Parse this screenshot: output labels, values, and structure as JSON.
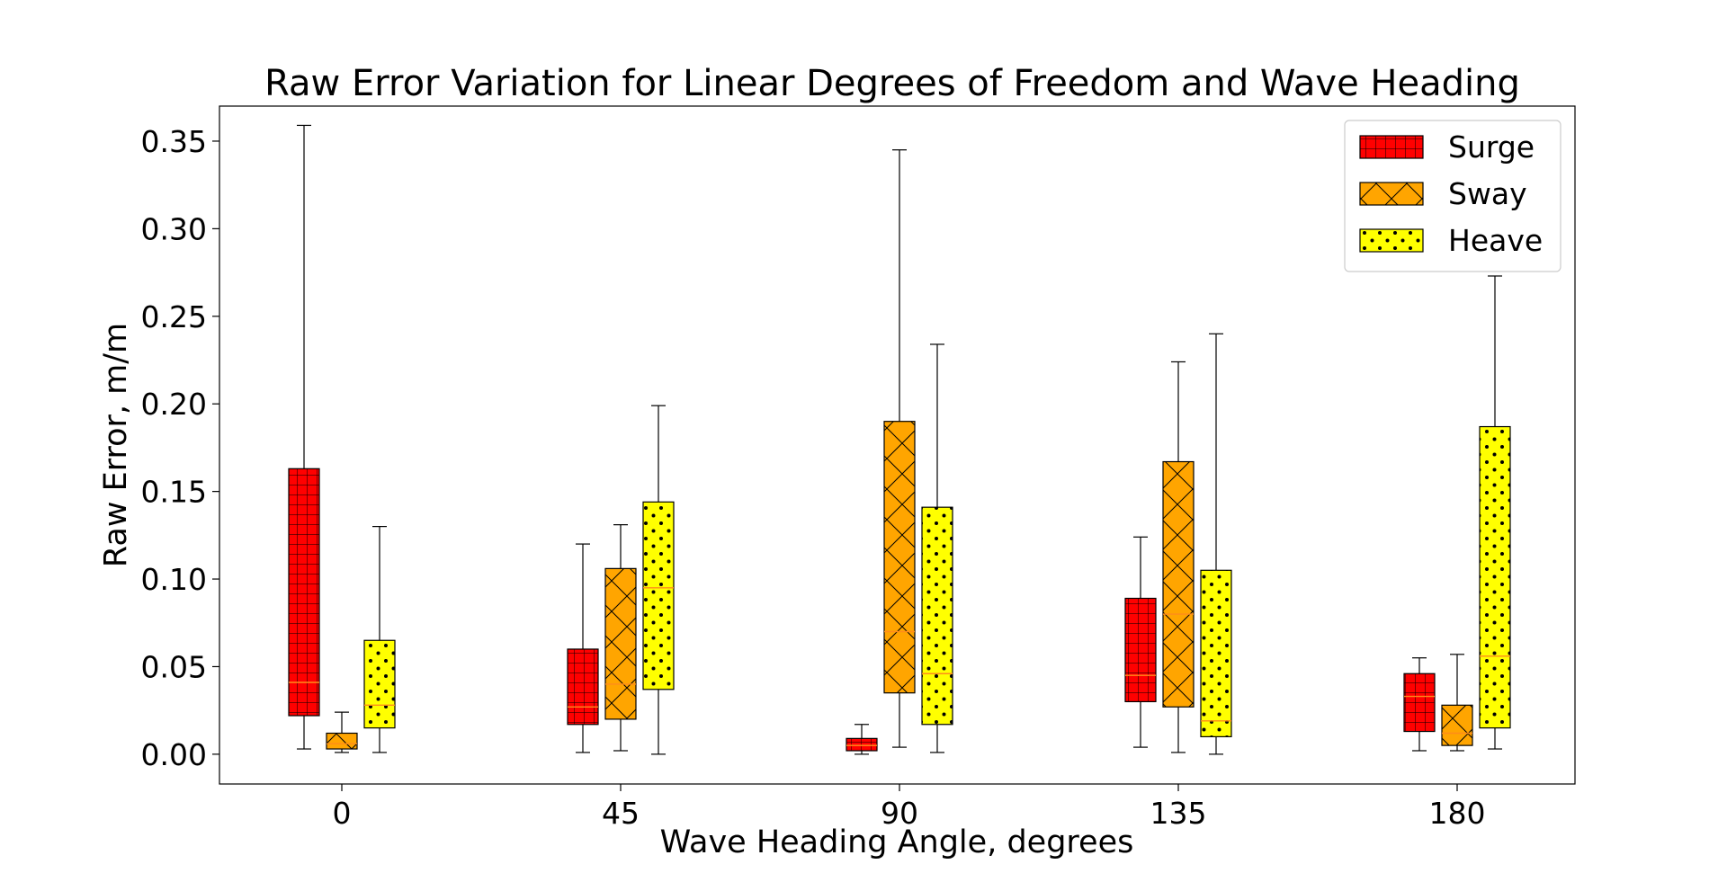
{
  "chart_data": {
    "type": "box",
    "title": "Raw Error Variation for Linear Degrees of Freedom and Wave Heading",
    "xlabel": "Wave Heading Angle, degrees",
    "ylabel": "Raw Error, m/m",
    "categories": [
      "0",
      "45",
      "90",
      "135",
      "180"
    ],
    "ylim": [
      -0.017,
      0.37
    ],
    "yticks": [
      0.0,
      0.05,
      0.1,
      0.15,
      0.2,
      0.25,
      0.3,
      0.35
    ],
    "ytick_labels": [
      "0.00",
      "0.05",
      "0.10",
      "0.15",
      "0.20",
      "0.25",
      "0.30",
      "0.35"
    ],
    "legend_position": "top-right",
    "grid": false,
    "series": [
      {
        "name": "Surge",
        "color": "#ff0000",
        "hatch": "grid",
        "boxes": [
          {
            "min": 0.003,
            "q1": 0.022,
            "median": 0.041,
            "q3": 0.163,
            "max": 0.359
          },
          {
            "min": 0.001,
            "q1": 0.017,
            "median": 0.027,
            "q3": 0.06,
            "max": 0.12
          },
          {
            "min": 0.0,
            "q1": 0.002,
            "median": 0.005,
            "q3": 0.009,
            "max": 0.017
          },
          {
            "min": 0.004,
            "q1": 0.03,
            "median": 0.045,
            "q3": 0.089,
            "max": 0.124
          },
          {
            "min": 0.002,
            "q1": 0.013,
            "median": 0.033,
            "q3": 0.046,
            "max": 0.055
          }
        ]
      },
      {
        "name": "Sway",
        "color": "#ffa500",
        "hatch": "cross",
        "boxes": [
          {
            "min": 0.001,
            "q1": 0.003,
            "median": 0.006,
            "q3": 0.012,
            "max": 0.024
          },
          {
            "min": 0.002,
            "q1": 0.02,
            "median": 0.04,
            "q3": 0.106,
            "max": 0.131
          },
          {
            "min": 0.004,
            "q1": 0.035,
            "median": 0.07,
            "q3": 0.19,
            "max": 0.345
          },
          {
            "min": 0.001,
            "q1": 0.027,
            "median": 0.08,
            "q3": 0.167,
            "max": 0.224
          },
          {
            "min": 0.002,
            "q1": 0.005,
            "median": 0.012,
            "q3": 0.028,
            "max": 0.057
          }
        ]
      },
      {
        "name": "Heave",
        "color": "#ffff00",
        "hatch": "dots",
        "boxes": [
          {
            "min": 0.001,
            "q1": 0.015,
            "median": 0.028,
            "q3": 0.065,
            "max": 0.13
          },
          {
            "min": 0.0,
            "q1": 0.037,
            "median": 0.095,
            "q3": 0.144,
            "max": 0.199
          },
          {
            "min": 0.001,
            "q1": 0.017,
            "median": 0.046,
            "q3": 0.141,
            "max": 0.234
          },
          {
            "min": 0.0,
            "q1": 0.01,
            "median": 0.019,
            "q3": 0.105,
            "max": 0.24
          },
          {
            "min": 0.003,
            "q1": 0.015,
            "median": 0.056,
            "q3": 0.187,
            "max": 0.273
          }
        ]
      }
    ]
  }
}
